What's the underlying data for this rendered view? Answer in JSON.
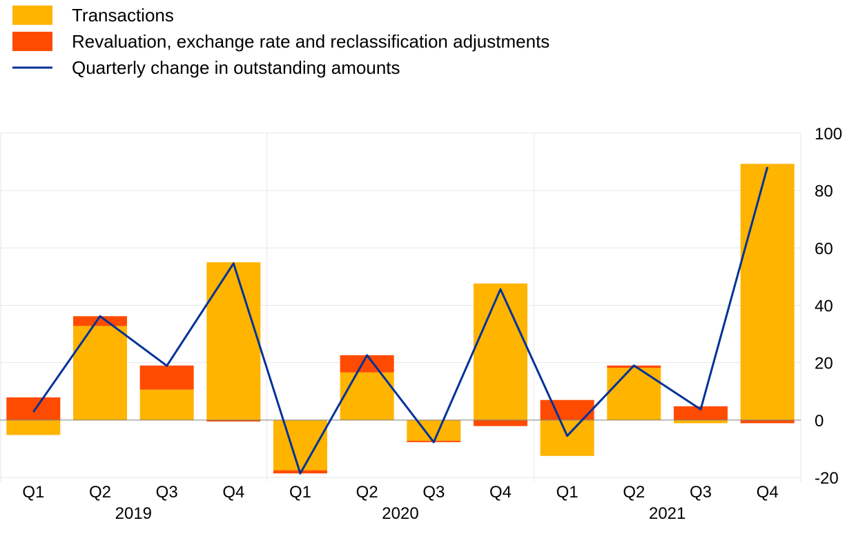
{
  "chart_data": {
    "type": "bar",
    "stacked": true,
    "legend_position": "top-left",
    "grid": true,
    "y_axis_side": "right",
    "ylim": [
      -20,
      100
    ],
    "yticks": [
      100,
      80,
      60,
      40,
      20,
      0,
      -20
    ],
    "yticks_labels": [
      "100",
      "80",
      "60",
      "40",
      "20",
      "0",
      "-20"
    ],
    "categories": [
      "Q1",
      "Q2",
      "Q3",
      "Q4",
      "Q1",
      "Q2",
      "Q3",
      "Q4",
      "Q1",
      "Q2",
      "Q3",
      "Q4"
    ],
    "years": [
      "2019",
      "2020",
      "2021"
    ],
    "series": [
      {
        "name": "Transactions",
        "type": "bar",
        "color": "#FFB400",
        "values": [
          -5.2,
          32.8,
          10.6,
          55.0,
          -17.5,
          16.6,
          -7.2,
          47.6,
          -12.5,
          18.2,
          -1.1,
          89.3
        ]
      },
      {
        "name": "Revaluation, exchange rate and reclassification adjustments",
        "type": "bar",
        "color": "#FF4B00",
        "values": [
          7.9,
          3.4,
          8.4,
          -0.5,
          -1.1,
          6.0,
          -0.5,
          -2.1,
          7.0,
          0.8,
          4.8,
          -1.1
        ]
      },
      {
        "name": "Quarterly change in outstanding amounts",
        "type": "line",
        "color": "#003299",
        "values": [
          2.8,
          36.2,
          18.9,
          54.6,
          -18.6,
          22.6,
          -7.7,
          45.6,
          -5.5,
          19.0,
          3.7,
          88.2
        ]
      }
    ]
  }
}
